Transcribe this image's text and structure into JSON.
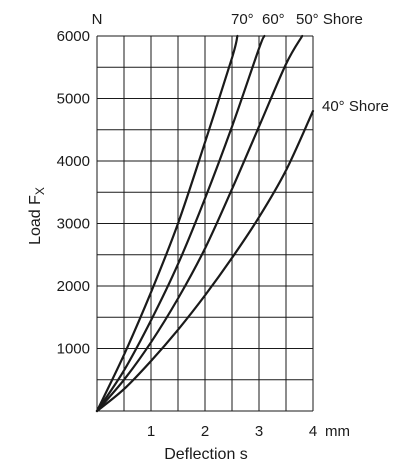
{
  "chart_data": {
    "type": "line",
    "title": "",
    "xlabel": "Deflection s",
    "ylabel": "Load F",
    "ylabel_sub": "X",
    "x_unit": "mm",
    "y_unit": "N",
    "xlim": [
      0,
      4
    ],
    "ylim": [
      0,
      6000
    ],
    "x_ticks": [
      1,
      2,
      3,
      4
    ],
    "y_ticks": [
      1000,
      2000,
      3000,
      4000,
      5000,
      6000
    ],
    "x_tick_labels": [
      "1",
      "2",
      "3",
      "4"
    ],
    "y_tick_labels": [
      "1000",
      "2000",
      "3000",
      "4000",
      "5000",
      "6000"
    ],
    "grid": true,
    "x_minor_step": 0.5,
    "y_minor_step": 500,
    "legend_placement": "labels at curve ends, top-right",
    "series": [
      {
        "name": "70°",
        "x": [
          0,
          0.5,
          1,
          1.5,
          2,
          2.5,
          2.6
        ],
        "y": [
          0,
          900,
          1900,
          3000,
          4300,
          5650,
          6000
        ]
      },
      {
        "name": "60°",
        "x": [
          0,
          0.5,
          1,
          1.5,
          2,
          2.5,
          3,
          3.1
        ],
        "y": [
          0,
          650,
          1450,
          2350,
          3400,
          4550,
          5800,
          6000
        ]
      },
      {
        "name": "50° Shore",
        "x": [
          0,
          0.5,
          1,
          1.5,
          2,
          2.5,
          3,
          3.5,
          3.8
        ],
        "y": [
          0,
          500,
          1100,
          1800,
          2600,
          3550,
          4550,
          5550,
          6000
        ]
      },
      {
        "name": "40° Shore",
        "x": [
          0,
          0.5,
          1,
          1.5,
          2,
          2.5,
          3,
          3.5,
          4
        ],
        "y": [
          0,
          350,
          800,
          1300,
          1850,
          2450,
          3100,
          3850,
          4800
        ]
      }
    ]
  }
}
